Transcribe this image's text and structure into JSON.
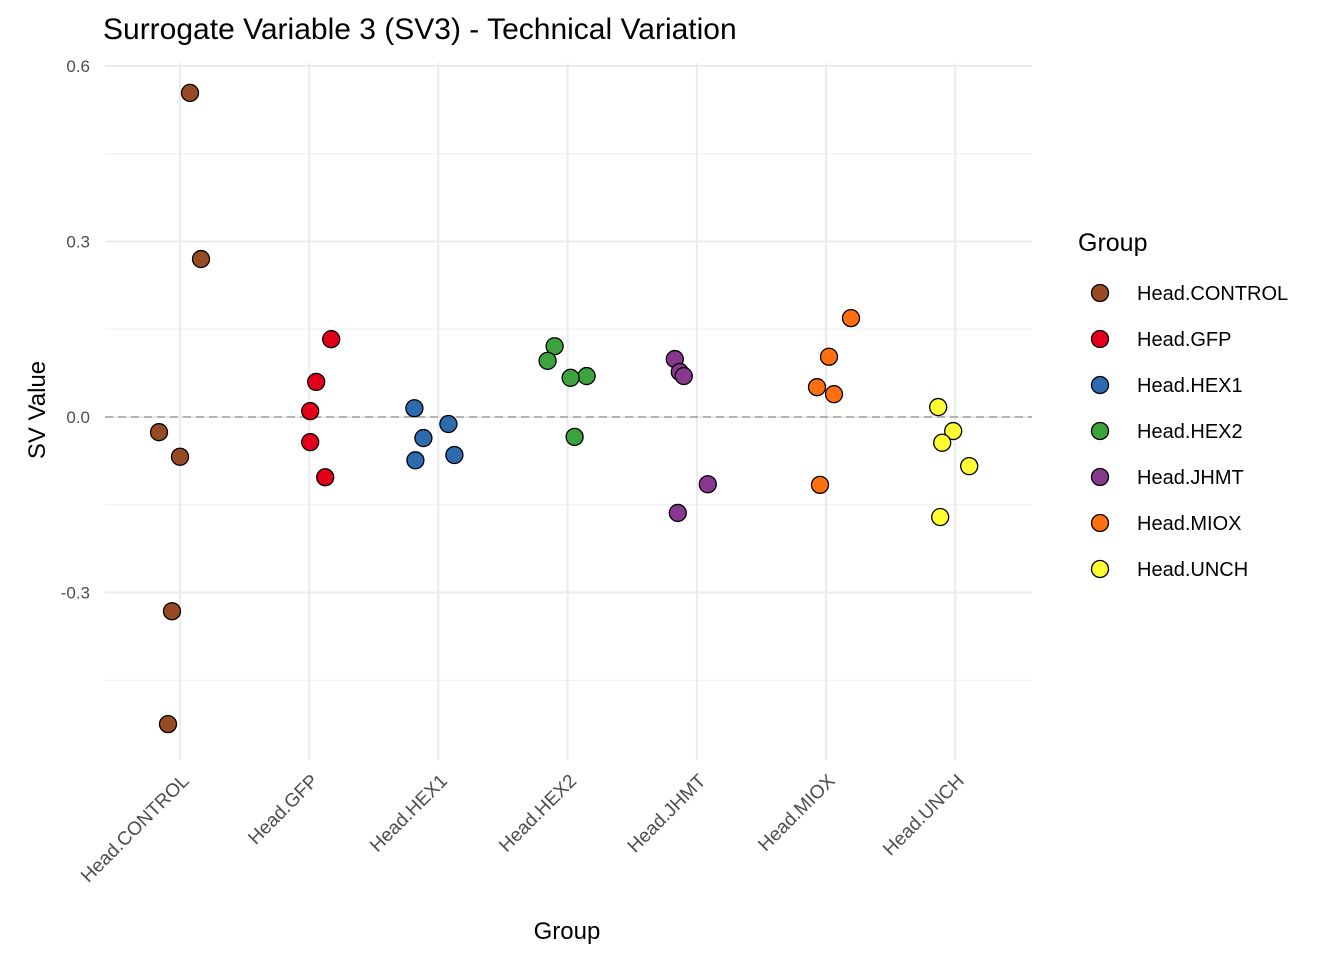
{
  "chart_data": {
    "type": "scatter",
    "title": "Surrogate Variable 3 (SV3) - Technical Variation",
    "xlabel": "Group",
    "ylabel": "SV Value",
    "ylim": [
      -0.586,
      0.63
    ],
    "yticks": [
      0.6,
      0.3,
      0.0,
      -0.3
    ],
    "ytick_labels": [
      "0.6",
      "0.3",
      "0.0",
      "-0.3"
    ],
    "grid": true,
    "reference_line": {
      "y": 0,
      "style": "dashed",
      "color": "#b3b3b3"
    },
    "legend": {
      "title": "Group",
      "placement": "right"
    },
    "categories": [
      "Head.CONTROL",
      "Head.GFP",
      "Head.HEX1",
      "Head.HEX2",
      "Head.JHMT",
      "Head.MIOX",
      "Head.UNCH"
    ],
    "series": [
      {
        "name": "Head.CONTROL",
        "color": "#964B24",
        "values": [
          0.554,
          0.27,
          -0.026,
          -0.068,
          -0.332,
          -0.525
        ]
      },
      {
        "name": "Head.GFP",
        "color": "#E3001B",
        "values": [
          0.133,
          0.06,
          0.01,
          -0.043,
          -0.103
        ]
      },
      {
        "name": "Head.HEX1",
        "color": "#2E6BAE",
        "values": [
          0.015,
          -0.012,
          -0.036,
          -0.065,
          -0.074
        ]
      },
      {
        "name": "Head.HEX2",
        "color": "#3DA33D",
        "values": [
          0.121,
          0.096,
          0.07,
          0.067,
          -0.034
        ]
      },
      {
        "name": "Head.JHMT",
        "color": "#88388F",
        "values": [
          0.099,
          0.077,
          0.07,
          -0.115,
          -0.164
        ]
      },
      {
        "name": "Head.MIOX",
        "color": "#FF6F0F",
        "values": [
          0.169,
          0.103,
          0.051,
          0.039,
          -0.116
        ]
      },
      {
        "name": "Head.UNCH",
        "color": "#FFFF33",
        "values": [
          0.017,
          -0.024,
          -0.044,
          -0.084,
          -0.171
        ]
      }
    ]
  }
}
